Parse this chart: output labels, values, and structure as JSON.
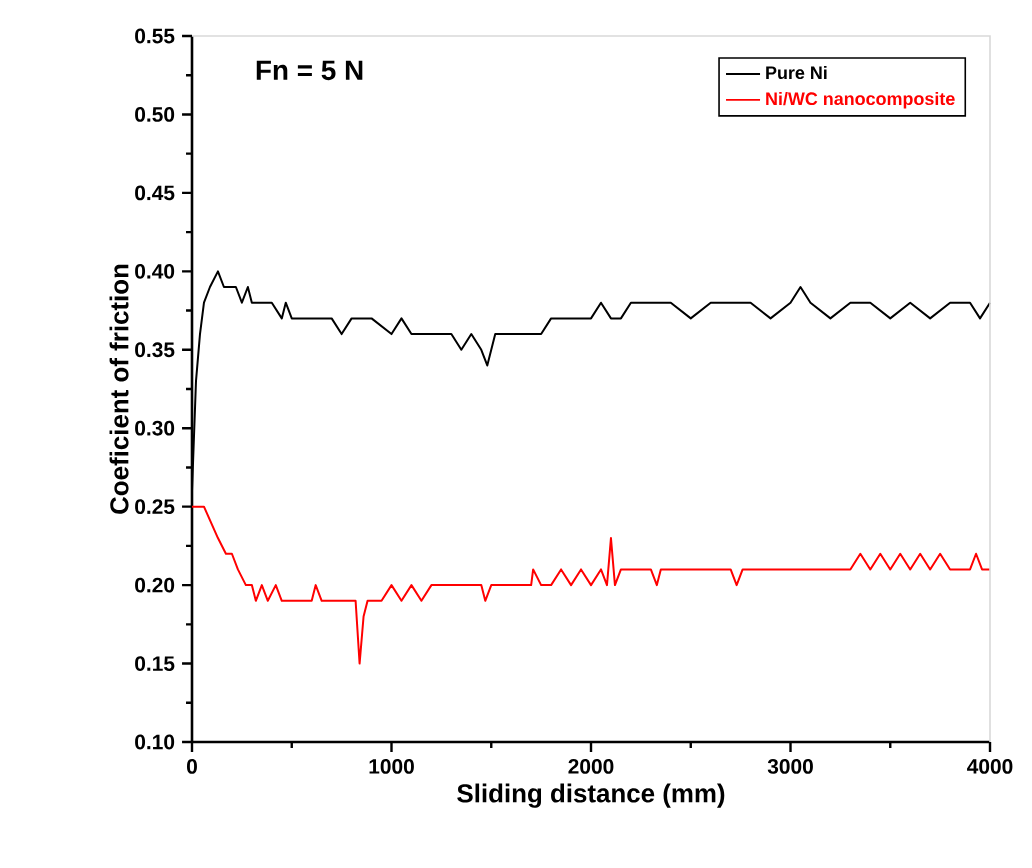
{
  "chart_data": {
    "type": "line",
    "xlabel": "Sliding distance (mm)",
    "ylabel": "Coeficient of friction",
    "annotations": [
      "Fn = 5 N"
    ],
    "xlim": [
      0,
      4000
    ],
    "ylim": [
      0.1,
      0.55
    ],
    "xticks": [
      0,
      1000,
      2000,
      3000,
      4000
    ],
    "yticks": [
      {
        "value": 0.1,
        "label": "0.10"
      },
      {
        "value": 0.15,
        "label": "0.15"
      },
      {
        "value": 0.2,
        "label": "0.20"
      },
      {
        "value": 0.25,
        "label": "0.25"
      },
      {
        "value": 0.3,
        "label": "0.30"
      },
      {
        "value": 0.35,
        "label": "0.35"
      },
      {
        "value": 0.4,
        "label": "0.40"
      },
      {
        "value": 0.45,
        "label": "0.45"
      },
      {
        "value": 0.5,
        "label": "0.50"
      },
      {
        "value": 0.55,
        "label": "0.55"
      }
    ],
    "grid": false,
    "legend": "top right",
    "marker": "none",
    "line_style": "solid",
    "series": [
      {
        "name": "Pure Ni",
        "color": "#000000",
        "x": [
          0,
          20,
          40,
          60,
          90,
          130,
          160,
          180,
          220,
          250,
          280,
          300,
          330,
          360,
          400,
          450,
          470,
          500,
          530,
          560,
          600,
          700,
          750,
          800,
          900,
          1000,
          1050,
          1100,
          1200,
          1300,
          1350,
          1400,
          1450,
          1480,
          1520,
          1600,
          1700,
          1750,
          1800,
          1850,
          1900,
          2000,
          2050,
          2100,
          2150,
          2200,
          2300,
          2400,
          2500,
          2600,
          2700,
          2800,
          2900,
          3000,
          3050,
          3100,
          3200,
          3300,
          3400,
          3500,
          3600,
          3700,
          3800,
          3900,
          3950,
          4000
        ],
        "values": [
          0.26,
          0.33,
          0.36,
          0.38,
          0.39,
          0.4,
          0.39,
          0.39,
          0.39,
          0.38,
          0.39,
          0.38,
          0.38,
          0.38,
          0.38,
          0.37,
          0.38,
          0.37,
          0.37,
          0.37,
          0.37,
          0.37,
          0.36,
          0.37,
          0.37,
          0.36,
          0.37,
          0.36,
          0.36,
          0.36,
          0.35,
          0.36,
          0.35,
          0.34,
          0.36,
          0.36,
          0.36,
          0.36,
          0.37,
          0.37,
          0.37,
          0.37,
          0.38,
          0.37,
          0.37,
          0.38,
          0.38,
          0.38,
          0.37,
          0.38,
          0.38,
          0.38,
          0.37,
          0.38,
          0.39,
          0.38,
          0.37,
          0.38,
          0.38,
          0.37,
          0.38,
          0.37,
          0.38,
          0.38,
          0.37,
          0.38
        ]
      },
      {
        "name": "Ni/WC nanocomposite",
        "color": "#ff0000",
        "x": [
          0,
          60,
          130,
          170,
          200,
          230,
          270,
          300,
          320,
          350,
          380,
          420,
          450,
          500,
          600,
          620,
          650,
          700,
          800,
          820,
          840,
          860,
          880,
          900,
          950,
          1000,
          1050,
          1100,
          1150,
          1200,
          1300,
          1450,
          1470,
          1500,
          1700,
          1710,
          1750,
          1800,
          1850,
          1900,
          1950,
          2000,
          2050,
          2080,
          2100,
          2120,
          2150,
          2200,
          2300,
          2330,
          2350,
          2400,
          2700,
          2730,
          2760,
          3000,
          3300,
          3350,
          3400,
          3450,
          3500,
          3550,
          3600,
          3650,
          3700,
          3750,
          3800,
          3900,
          3930,
          3960,
          4000
        ],
        "values": [
          0.25,
          0.25,
          0.23,
          0.22,
          0.22,
          0.21,
          0.2,
          0.2,
          0.19,
          0.2,
          0.19,
          0.2,
          0.19,
          0.19,
          0.19,
          0.2,
          0.19,
          0.19,
          0.19,
          0.19,
          0.15,
          0.18,
          0.19,
          0.19,
          0.19,
          0.2,
          0.19,
          0.2,
          0.19,
          0.2,
          0.2,
          0.2,
          0.19,
          0.2,
          0.2,
          0.21,
          0.2,
          0.2,
          0.21,
          0.2,
          0.21,
          0.2,
          0.21,
          0.2,
          0.23,
          0.2,
          0.21,
          0.21,
          0.21,
          0.2,
          0.21,
          0.21,
          0.21,
          0.2,
          0.21,
          0.21,
          0.21,
          0.22,
          0.21,
          0.22,
          0.21,
          0.22,
          0.21,
          0.22,
          0.21,
          0.22,
          0.21,
          0.21,
          0.22,
          0.21,
          0.21
        ]
      }
    ]
  }
}
